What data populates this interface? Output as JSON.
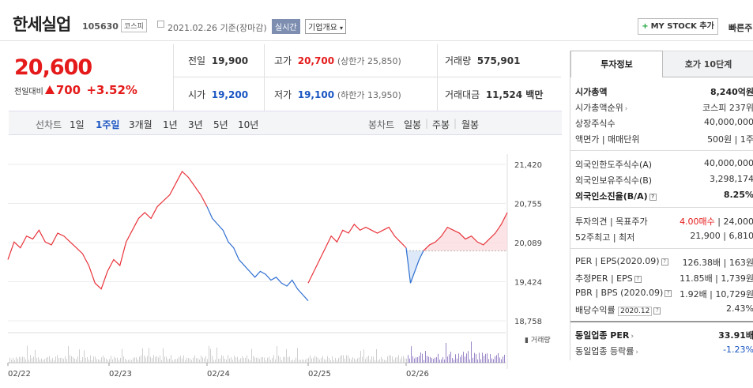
{
  "header": {
    "name": "한세실업",
    "code": "105630",
    "market": "코스피",
    "date": "2021.02.26 기준(장마감)",
    "realtime": "실시간",
    "company_info": "기업개요",
    "mystock_label": "MY STOCK 추가",
    "quick_label": "빠른주"
  },
  "price": {
    "current": "20,600",
    "change_label": "전일대비",
    "change_value": "700",
    "change_pct": "+3.52%"
  },
  "stats": {
    "prev_label": "전일",
    "prev_value": "19,900",
    "high_label": "고가",
    "high_value": "20,700",
    "high_sub": "(상한가 25,850)",
    "volume_label": "거래량",
    "volume_value": "575,901",
    "open_label": "시가",
    "open_value": "19,200",
    "low_label": "저가",
    "low_value": "19,100",
    "low_sub": "(하한가 13,950)",
    "amount_label": "거래대금",
    "amount_value": "11,524 백만"
  },
  "period_bar": {
    "line_label": "선차트",
    "line_items": [
      "1일",
      "1주일",
      "3개월",
      "1년",
      "3년",
      "5년",
      "10년"
    ],
    "selected": "1주일",
    "candle_label": "봉차트",
    "candle_items": [
      "일봉",
      "주봉",
      "월봉"
    ]
  },
  "chart_data": {
    "type": "line",
    "y_ticks": [
      "21,420",
      "20,755",
      "20,089",
      "19,424",
      "18,758"
    ],
    "ylim": [
      18758,
      21420
    ],
    "x_labels": [
      "02/22",
      "02/23",
      "02/24",
      "02/25",
      "02/26"
    ],
    "volume_label": "거래량",
    "up_color": "#e8343b",
    "down_color": "#2f6fd1",
    "series": [
      {
        "values": [
          19800,
          20100,
          20000,
          20200,
          20150,
          20300,
          20100,
          20050,
          20250,
          20200,
          20100,
          20000,
          19900,
          19700,
          19400,
          19300,
          19600,
          19800,
          19700,
          20100,
          20300,
          20500,
          20600,
          20500,
          20700,
          20800,
          20900,
          21100,
          21300,
          21200,
          21050,
          20900,
          20700
        ]
      },
      {
        "values": [
          20700,
          20500,
          20400,
          20300,
          20100,
          20000,
          19800,
          19700,
          19600,
          19500,
          19600,
          19550,
          19450,
          19500,
          19400,
          19350,
          19450,
          19300,
          19200,
          19100
        ]
      },
      {
        "values": [
          19400,
          19600,
          19800,
          20000,
          20200,
          20100,
          20300,
          20250,
          20400,
          20300,
          20350,
          20300,
          20250,
          20300,
          20350,
          20200,
          20100,
          20000
        ]
      },
      {
        "values": [
          20000,
          19400,
          19600,
          19800,
          19950
        ]
      },
      {
        "values": [
          19950,
          20050,
          20100,
          20200,
          20350,
          20300,
          20250,
          20150,
          20200,
          20100,
          20050,
          20150,
          20250,
          20400,
          20600
        ]
      }
    ]
  },
  "panel": {
    "tab_active": "투자정보",
    "tab_other": "호가 10단계",
    "market_cap_label": "시가총액",
    "market_cap_value": "8,240억원",
    "rank_label": "시가총액순위",
    "rank_value": "코스피 237위",
    "shares_label": "상장주식수",
    "shares_value": "40,000,000",
    "par_label": "액면가 | 매매단위",
    "par_value": "500원 | 1주",
    "foreign_limit_label": "외국인한도주식수(A)",
    "foreign_limit_value": "40,000,000",
    "foreign_hold_label": "외국인보유주식수(B)",
    "foreign_hold_value": "3,298,174",
    "foreign_rate_label": "외국인소진율(B/A)",
    "foreign_rate_value": "8.25%",
    "opinion_label": "투자의견 | 목표주가",
    "opinion_value_red": "4.00매수",
    "opinion_value": "| 24,000",
    "w52_label": "52주최고 | 최저",
    "w52_value": "21,900 | 6,810",
    "per_label": "PER | EPS(2020.09)",
    "per_value": "126.38배 | 163원",
    "est_per_label": "추정PER | EPS",
    "est_per_value": "11.85배 | 1,739원",
    "pbr_label": "PBR | BPS (2020.09)",
    "pbr_value": "1.92배 | 10,729원",
    "div_label": "배당수익률",
    "div_date": "2020.12",
    "div_value": "2.43%",
    "sector_per_label": "동일업종 PER",
    "sector_per_value": "33.91배",
    "sector_rate_label": "동일업종 등락률",
    "sector_rate_value": "-1.23%"
  }
}
